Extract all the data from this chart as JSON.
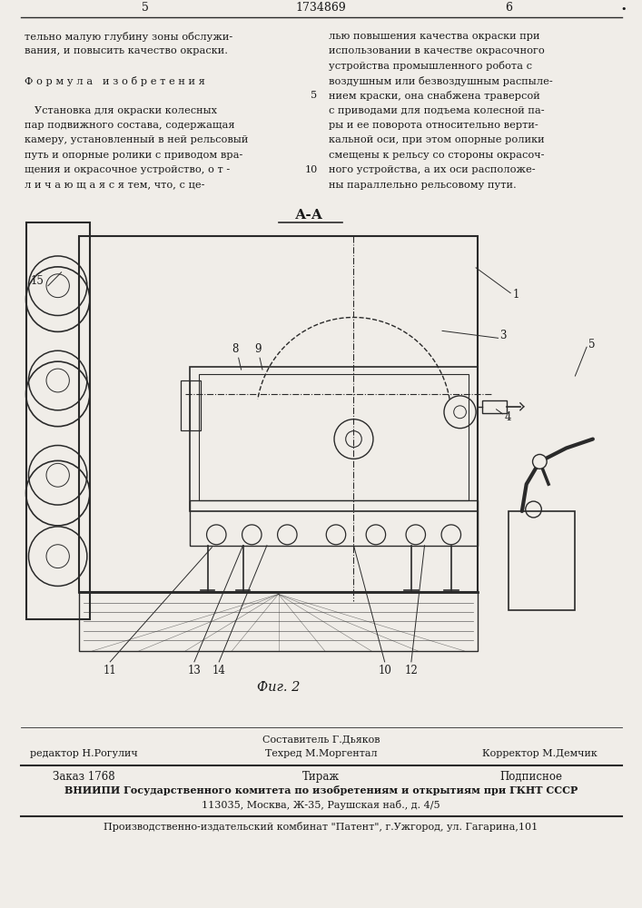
{
  "page_number_left": "5",
  "page_number_center": "1734869",
  "page_number_right": "6",
  "col_left_text": [
    "тельно малую глубину зоны обслужи-",
    "вания, и повысить качество окраски.",
    "",
    "Ф о р м у л а   и з о б р е т е н и я",
    "",
    "   Установка для окраски колесных",
    "пар подвижного состава, содержащая",
    "камеру, установленный в ней рельсовый",
    "путь и опорные ролики с приводом вра-",
    "щения и окрасочное устройство, о т -",
    "л и ч а ю щ а я с я тем, что, с це-"
  ],
  "col_right_text": [
    "лью повышения качества окраски при",
    "использовании в качестве окрасочного",
    "устройства промышленного робота с",
    "воздушным или безвоздушным распыле-",
    "нием краски, она снабжена траверсой",
    "с приводами для подъема колесной па-",
    "ры и ее поворота относительно верти-",
    "кальной оси, при этом опорные ролики",
    "смещены к рельсу со стороны окрасоч-",
    "ного устройства, а их оси расположе-",
    "ны параллельно рельсовому пути."
  ],
  "figure_label": "А-А",
  "figure_caption": "Фиг. 2",
  "bg_color": "#f0ede8",
  "line_color": "#2a2a2a",
  "text_color": "#1a1a1a",
  "bottom_composer": "Составитель Г.Дьяков",
  "bottom_editor": "редактор Н.Рогулич",
  "bottom_techred": "Техред М.Моргентал",
  "bottom_corrector": "Корректор М.Демчик",
  "bottom_order": "Заказ 1768",
  "bottom_tirazh": "Тираж",
  "bottom_podpisnoe": "Подписное",
  "bottom_vniippi": "ВНИИПИ Государственного комитета по изобретениям и открытиям при ГКНТ СССР",
  "bottom_address": "113035, Москва, Ж-35, Раушская наб., д. 4/5",
  "bottom_publisher": "Производственно-издательский комбинат \"Патент\", г.Ужгород, ул. Гагарина,101"
}
